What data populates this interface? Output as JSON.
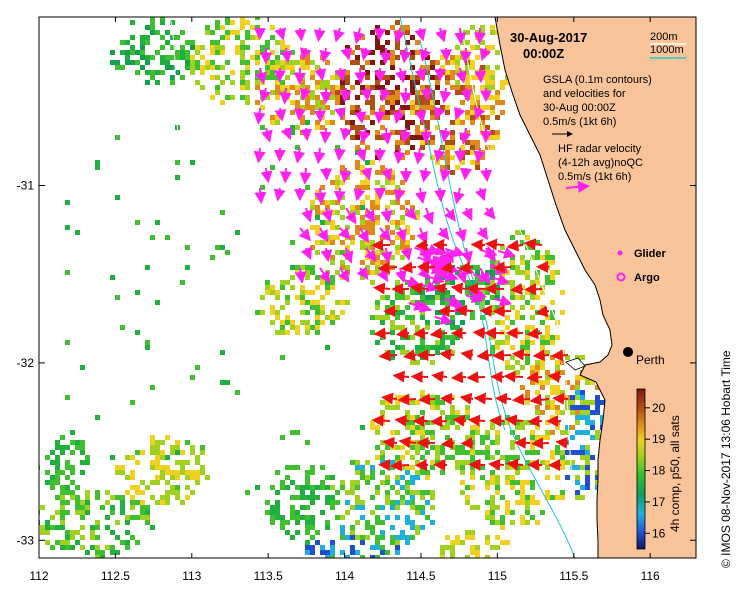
{
  "title": {
    "date": "30-Aug-2017",
    "time": "00:00Z"
  },
  "depth_legend": {
    "shallow": "200m",
    "deep": "1000m",
    "shallow_color": "#ffffff",
    "deep_color": "#22c8c8"
  },
  "gsla_legend": {
    "line1": "GSLA (0.1m contours)",
    "line2": "and velocities for",
    "line3": "30-Aug 00:00Z",
    "line4": "0.5m/s (1kt 6h)"
  },
  "hf_legend": {
    "line1": "HF radar velocity",
    "line2": "(4-12h avg)noQC",
    "line3": "0.5m/s (1kt 6h)"
  },
  "markers": {
    "glider": "Glider",
    "argo": "Argo",
    "city": "Perth"
  },
  "colorbar": {
    "title": "4h comp, p50, all sats",
    "ticks": [
      "16",
      "17",
      "18",
      "19",
      "20"
    ],
    "min": 15.5,
    "max": 20.6
  },
  "credit": "©  IMOS 08-Nov-2017 13:06 Hobart Time",
  "axes": {
    "x_ticks": [
      "112",
      "112.5",
      "113",
      "113.5",
      "114",
      "114.5",
      "115",
      "115.5",
      "116"
    ],
    "y_ticks": [
      "-31",
      "-32",
      "-33"
    ],
    "lon_range": [
      112,
      116.3
    ],
    "lat_range": [
      -33.1,
      -30.05
    ]
  },
  "colors": {
    "land": "#f9c49a",
    "argo_vectors": "#ff22ee",
    "hf_vectors": "#ee1111",
    "glider": "#ff22ee"
  }
}
